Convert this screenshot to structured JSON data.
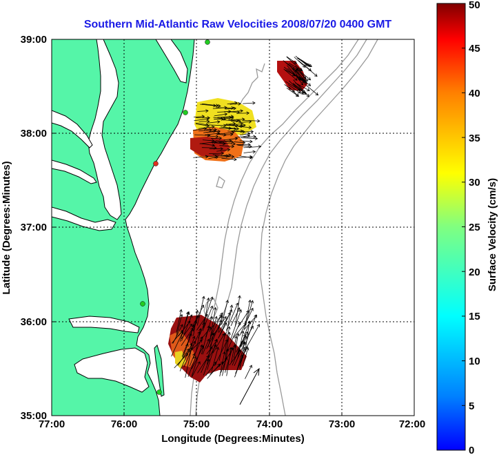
{
  "title": "Southern Mid-Atlantic Raw Velocities 2008/07/20 0400 GMT",
  "xlabel": "Longitude (Degrees:Minutes)",
  "ylabel": "Latitude (Degrees:Minutes)",
  "x_ticks": [
    "77:00",
    "76:00",
    "75:00",
    "74:00",
    "73:00",
    "72:00"
  ],
  "y_ticks": [
    "39:00",
    "38:00",
    "37:00",
    "36:00",
    "35:00"
  ],
  "colorbar": {
    "label": "Surface Velocity (cm/s)",
    "ticks": [
      "50",
      "45",
      "40",
      "35",
      "30",
      "25",
      "20",
      "15",
      "10",
      "5",
      "0"
    ],
    "range": [
      0,
      50
    ]
  },
  "map_extent": {
    "lon": [
      -77,
      -72
    ],
    "lat": [
      35,
      39
    ]
  },
  "colors": {
    "land": "#55f5a8",
    "water": "#ffffff",
    "bathymetry": "#999999",
    "title": "#1a1ae6",
    "station": "#22cc22",
    "station_alt": "#e03020"
  },
  "grid": true
}
